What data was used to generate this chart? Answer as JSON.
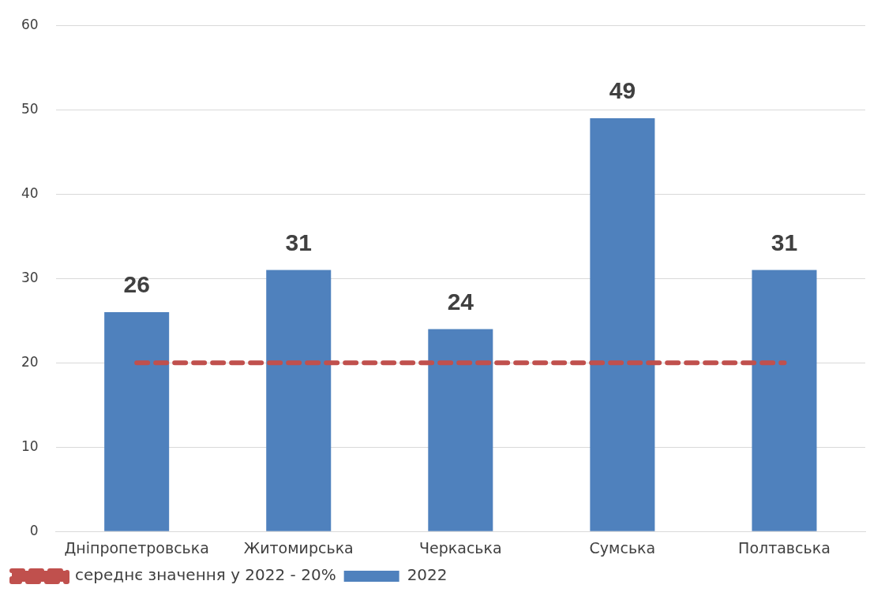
{
  "chart_data": {
    "type": "bar",
    "categories": [
      "Дніпропетровська",
      "Житомирська",
      "Черкаська",
      "Сумська",
      "Полтавська"
    ],
    "series": [
      {
        "name": "2022",
        "color": "#4f81bd",
        "values": [
          26,
          31,
          24,
          49,
          31
        ],
        "value_labels": [
          "26",
          "31",
          "24",
          "49",
          "31"
        ]
      },
      {
        "name": "середнє значення у 2022 - 20%",
        "type": "line",
        "color": "#c0504d",
        "line_style": "dashed",
        "marker": "none",
        "values": [
          20,
          20,
          20,
          20,
          20
        ]
      }
    ],
    "ylim": [
      0,
      60
    ],
    "yticks": [
      0,
      10,
      20,
      30,
      40,
      50,
      60
    ],
    "grid": "y",
    "legend": "bottom"
  }
}
